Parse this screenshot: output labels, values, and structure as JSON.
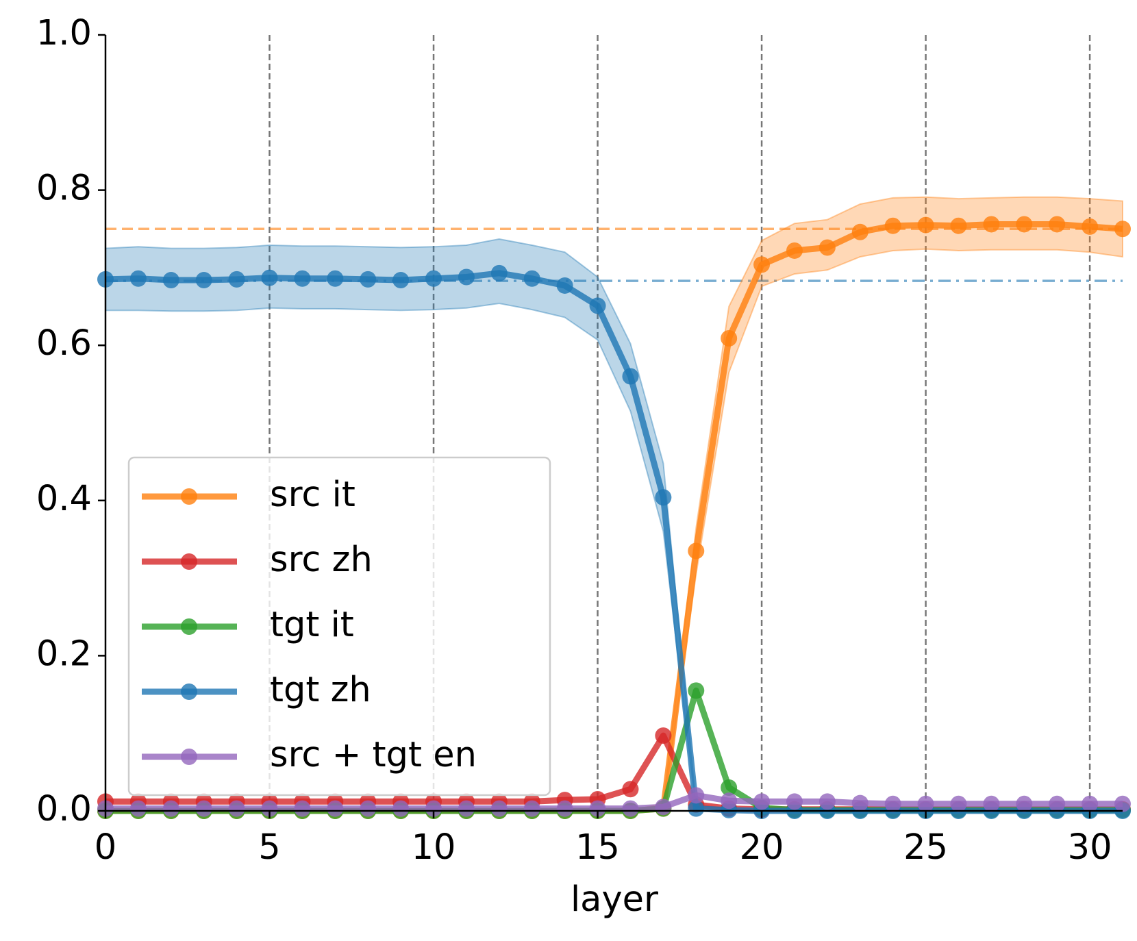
{
  "chart_data": {
    "type": "line",
    "x": [
      0,
      1,
      2,
      3,
      4,
      5,
      6,
      7,
      8,
      9,
      10,
      11,
      12,
      13,
      14,
      15,
      16,
      17,
      18,
      19,
      20,
      21,
      22,
      23,
      24,
      25,
      26,
      27,
      28,
      29,
      30,
      31
    ],
    "xlabel": "layer",
    "xlim": [
      0,
      31
    ],
    "xticks": [
      0,
      5,
      10,
      15,
      20,
      25,
      30
    ],
    "ylim": [
      0,
      1
    ],
    "yticks": [
      {
        "value": 0,
        "label": "0.0"
      },
      0.2,
      0.4,
      0.6,
      0.8,
      {
        "value": 1,
        "label": "1.0"
      }
    ],
    "xgrid": true,
    "legend": "lower left",
    "hlines": [
      {
        "y": 0.75,
        "color": "#ff7f0e",
        "style": "dashed"
      },
      {
        "y": 0.683,
        "color": "#1f77b4",
        "style": "dashdot"
      }
    ],
    "series": [
      {
        "name": "src it",
        "color": "#ff7f0e",
        "values": [
          0,
          0,
          0,
          0,
          0,
          0,
          0,
          0,
          0,
          0,
          0,
          0,
          0,
          0,
          0,
          0,
          0,
          0.003,
          0.335,
          0.609,
          0.704,
          0.722,
          0.726,
          0.746,
          0.754,
          0.755,
          0.754,
          0.756,
          0.756,
          0.756,
          0.753,
          0.75
        ],
        "lower": [
          0,
          0,
          0,
          0,
          0,
          0,
          0,
          0,
          0,
          0,
          0,
          0,
          0,
          0,
          0,
          0,
          0,
          0,
          0.305,
          0.565,
          0.676,
          0.692,
          0.697,
          0.714,
          0.722,
          0.724,
          0.722,
          0.723,
          0.723,
          0.723,
          0.72,
          0.714
        ],
        "upper": [
          0,
          0,
          0,
          0,
          0,
          0,
          0,
          0,
          0,
          0,
          0,
          0,
          0,
          0,
          0,
          0,
          0,
          0.01,
          0.365,
          0.65,
          0.735,
          0.757,
          0.762,
          0.782,
          0.79,
          0.791,
          0.789,
          0.79,
          0.791,
          0.791,
          0.789,
          0.786
        ]
      },
      {
        "name": "src zh",
        "color": "#d62728",
        "values": [
          0.012,
          0.012,
          0.012,
          0.012,
          0.012,
          0.012,
          0.012,
          0.012,
          0.012,
          0.012,
          0.012,
          0.012,
          0.012,
          0.012,
          0.014,
          0.015,
          0.028,
          0.097,
          0.008,
          0.003,
          0.002,
          0.002,
          0.002,
          0.002,
          0.002,
          0.002,
          0.002,
          0.002,
          0.002,
          0.002,
          0.002,
          0.002
        ]
      },
      {
        "name": "tgt it",
        "color": "#2ca02c",
        "values": [
          0,
          0,
          0,
          0,
          0,
          0,
          0,
          0,
          0,
          0,
          0,
          0,
          0,
          0,
          0,
          0,
          0,
          0.003,
          0.155,
          0.03,
          0.004,
          0.001,
          0.001,
          0.001,
          0.001,
          0.001,
          0.001,
          0.001,
          0.001,
          0.001,
          0.001,
          0.001
        ]
      },
      {
        "name": "tgt zh",
        "color": "#1f77b4",
        "values": [
          0.685,
          0.686,
          0.684,
          0.684,
          0.685,
          0.687,
          0.686,
          0.686,
          0.685,
          0.684,
          0.686,
          0.688,
          0.693,
          0.686,
          0.677,
          0.651,
          0.56,
          0.404,
          0.003,
          0.001,
          0,
          0,
          0,
          0,
          0,
          0,
          0,
          0,
          0,
          0,
          0,
          0
        ],
        "lower": [
          0.645,
          0.645,
          0.644,
          0.644,
          0.645,
          0.648,
          0.647,
          0.647,
          0.646,
          0.645,
          0.646,
          0.648,
          0.654,
          0.646,
          0.636,
          0.607,
          0.515,
          0.36,
          0,
          0,
          0,
          0,
          0,
          0,
          0,
          0,
          0,
          0,
          0,
          0,
          0,
          0
        ],
        "upper": [
          0.725,
          0.727,
          0.725,
          0.725,
          0.726,
          0.729,
          0.728,
          0.728,
          0.727,
          0.726,
          0.727,
          0.729,
          0.737,
          0.729,
          0.72,
          0.688,
          0.602,
          0.448,
          0.008,
          0.003,
          0,
          0,
          0,
          0,
          0,
          0,
          0,
          0,
          0,
          0,
          0,
          0
        ]
      },
      {
        "name": "src + tgt en",
        "color": "#9467bd",
        "values": [
          0.003,
          0.003,
          0.003,
          0.003,
          0.003,
          0.003,
          0.003,
          0.003,
          0.003,
          0.003,
          0.003,
          0.003,
          0.003,
          0.003,
          0.003,
          0.003,
          0.003,
          0.005,
          0.02,
          0.013,
          0.012,
          0.012,
          0.012,
          0.01,
          0.009,
          0.009,
          0.009,
          0.009,
          0.009,
          0.009,
          0.009,
          0.009
        ]
      }
    ]
  }
}
